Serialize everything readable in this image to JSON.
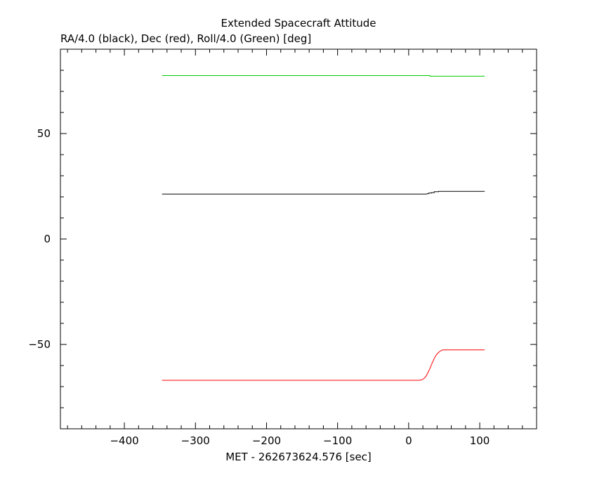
{
  "chart_data": {
    "type": "line",
    "title": "Extended Spacecraft Attitude",
    "subtitle": "RA/4.0 (black), Dec (red), Roll/4.0 (Green) [deg]",
    "xlabel": "MET - 262673624.576 [sec]",
    "ylabel": "",
    "xlim": [
      -490,
      180
    ],
    "ylim": [
      -90,
      90
    ],
    "x_ticks": [
      -400,
      -300,
      -200,
      -100,
      0,
      100
    ],
    "x_tick_labels": [
      "−400",
      "−300",
      "−200",
      "−100",
      "0",
      "100"
    ],
    "y_ticks": [
      -50,
      0,
      50
    ],
    "y_tick_labels": [
      "−50",
      "0",
      "50"
    ],
    "x_minor_step": 20,
    "y_minor_step": 10,
    "grid": false,
    "series": [
      {
        "key": "roll",
        "color": "#00cc00",
        "x": [
          -347,
          30,
          30,
          107
        ],
        "y": [
          77.5,
          77.5,
          77.2,
          77.2
        ]
      },
      {
        "key": "ra",
        "color": "#000000",
        "x": [
          -347,
          25,
          28,
          28,
          32,
          32,
          36,
          36,
          42,
          42,
          107
        ],
        "y": [
          21.3,
          21.3,
          21.6,
          21.8,
          21.8,
          22.0,
          22.0,
          22.4,
          22.4,
          22.6,
          22.6
        ],
        "step": true
      },
      {
        "key": "dec",
        "color": "#ff0000",
        "x": [
          -347,
          15,
          18,
          21,
          24,
          27,
          30,
          33,
          36,
          39,
          42,
          45,
          48,
          107
        ],
        "y": [
          -67,
          -67,
          -66.8,
          -66.3,
          -65.3,
          -63.5,
          -61.3,
          -58.9,
          -56.6,
          -54.9,
          -53.8,
          -53.0,
          -52.6,
          -52.6
        ],
        "step": true
      }
    ]
  }
}
